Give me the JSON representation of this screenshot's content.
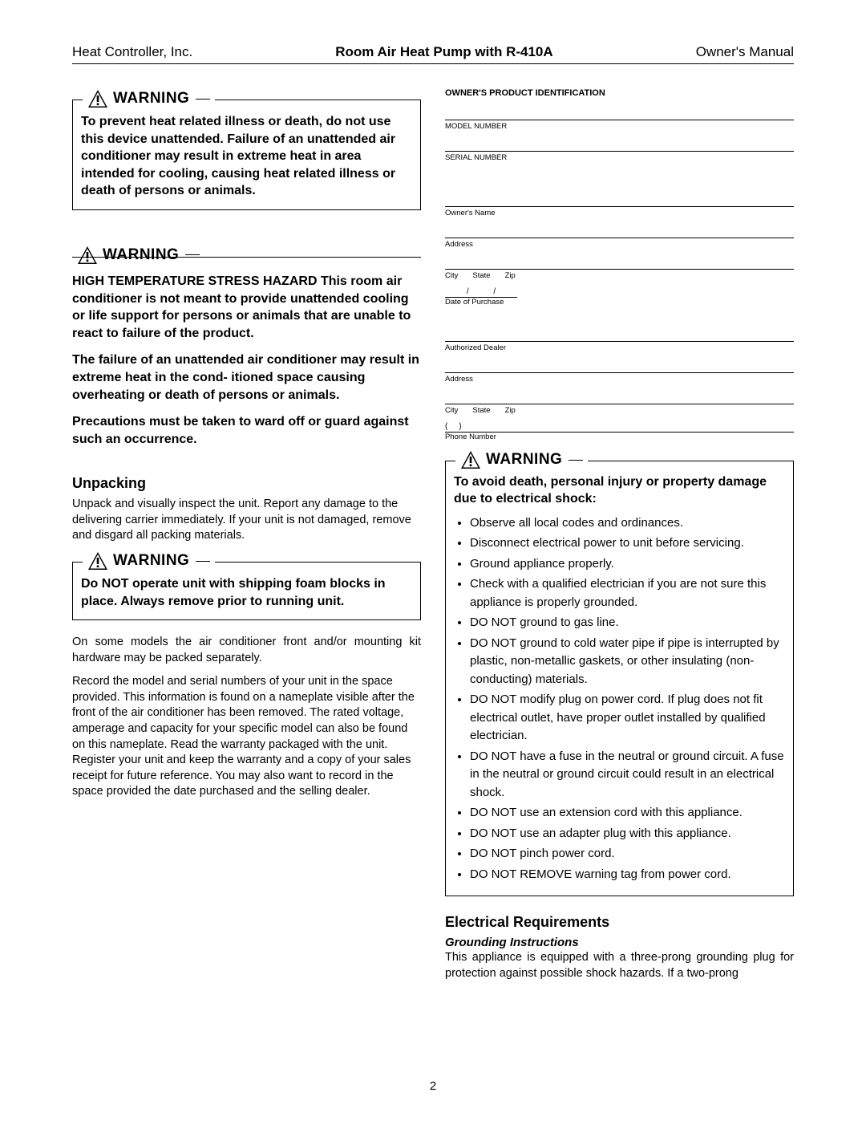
{
  "header": {
    "left": "Heat Controller, Inc.",
    "center": "Room Air Heat Pump with R-410A",
    "right": "Owner's Manual"
  },
  "left_col": {
    "warning1": {
      "title": "WARNING",
      "body": "To prevent heat related illness or death, do not use this device unattended. Failure of an unattended air conditioner may result in extreme heat in area intended for cooling, causing heat related illness or death of persons or animals."
    },
    "warning2": {
      "title": "WARNING",
      "p1": "HIGH TEMPERATURE STRESS HAZARD This room air conditioner is not meant to provide unattended cooling or life support for persons or animals that are unable to react to failure of the product.",
      "p2": "The failure of an unattended air conditioner may result in extreme heat in the cond- itioned space causing overheating or death of persons or animals.",
      "p3": "Precautions must be taken to ward off or guard against such an occurrence."
    },
    "unpacking": {
      "heading": "Unpacking",
      "body": "Unpack and visually inspect the unit. Report any damage to the delivering carrier immediately. If your unit is not damaged, remove and disgard all packing materials."
    },
    "warning3": {
      "title": "WARNING",
      "body": "Do NOT operate unit with shipping foam blocks in place.  Always remove prior to running unit."
    },
    "after1": "On some models the air conditioner front and/or mounting kit hardware may be packed separately.",
    "after2": "Record the model and serial numbers of your unit in the space provided. This information is found on a nameplate visible after the front of the air conditioner has been removed. The rated voltage, amperage and capacity for your specific model can also be found on this nameplate. Read the warranty packaged with the unit. Register your unit and keep the warranty and a copy of your sales receipt for future reference. You may also want to record in the space provided the date purchased and the selling dealer."
  },
  "right_col": {
    "id_title": "OWNER'S PRODUCT IDENTIFICATION",
    "labels": {
      "model": "MODEL NUMBER",
      "serial": "SERIAL NUMBER",
      "owner": "Owner's Name",
      "address": "Address",
      "city": "City",
      "state": "State",
      "zip": "Zip",
      "date": "Date of Purchase",
      "dealer": "Authorized Dealer",
      "phone": "Phone Number"
    },
    "warning4": {
      "title": "WARNING",
      "intro": "To avoid death, personal injury or property damage due to electrical shock:",
      "bullets": [
        "Observe all local codes and ordinances.",
        "Disconnect electrical power to unit before servicing.",
        "Ground appliance properly.",
        "Check with a qualified electrician if you are not sure this appliance is properly grounded.",
        "DO NOT ground to gas line.",
        "DO NOT ground to cold water pipe if pipe is interrupted by plastic, non-metallic gaskets, or other insulating (non-conducting) materials.",
        "DO NOT modify plug on power cord. If plug does not fit electrical outlet, have proper outlet installed by qualified electrician.",
        "DO NOT have a fuse in the neutral or ground circuit. A fuse in the neutral or ground circuit could result in an electrical shock.",
        "DO NOT use an extension cord with this appliance.",
        "DO NOT use an adapter plug with this appliance.",
        "DO NOT pinch power cord.",
        "DO NOT REMOVE warning tag from power cord."
      ]
    },
    "electrical": {
      "heading": "Electrical Requirements",
      "sub": "Grounding Instructions",
      "body": "This appliance is equipped with a three-prong grounding plug for protection against possible shock hazards. If a two-prong"
    }
  },
  "page": "2"
}
